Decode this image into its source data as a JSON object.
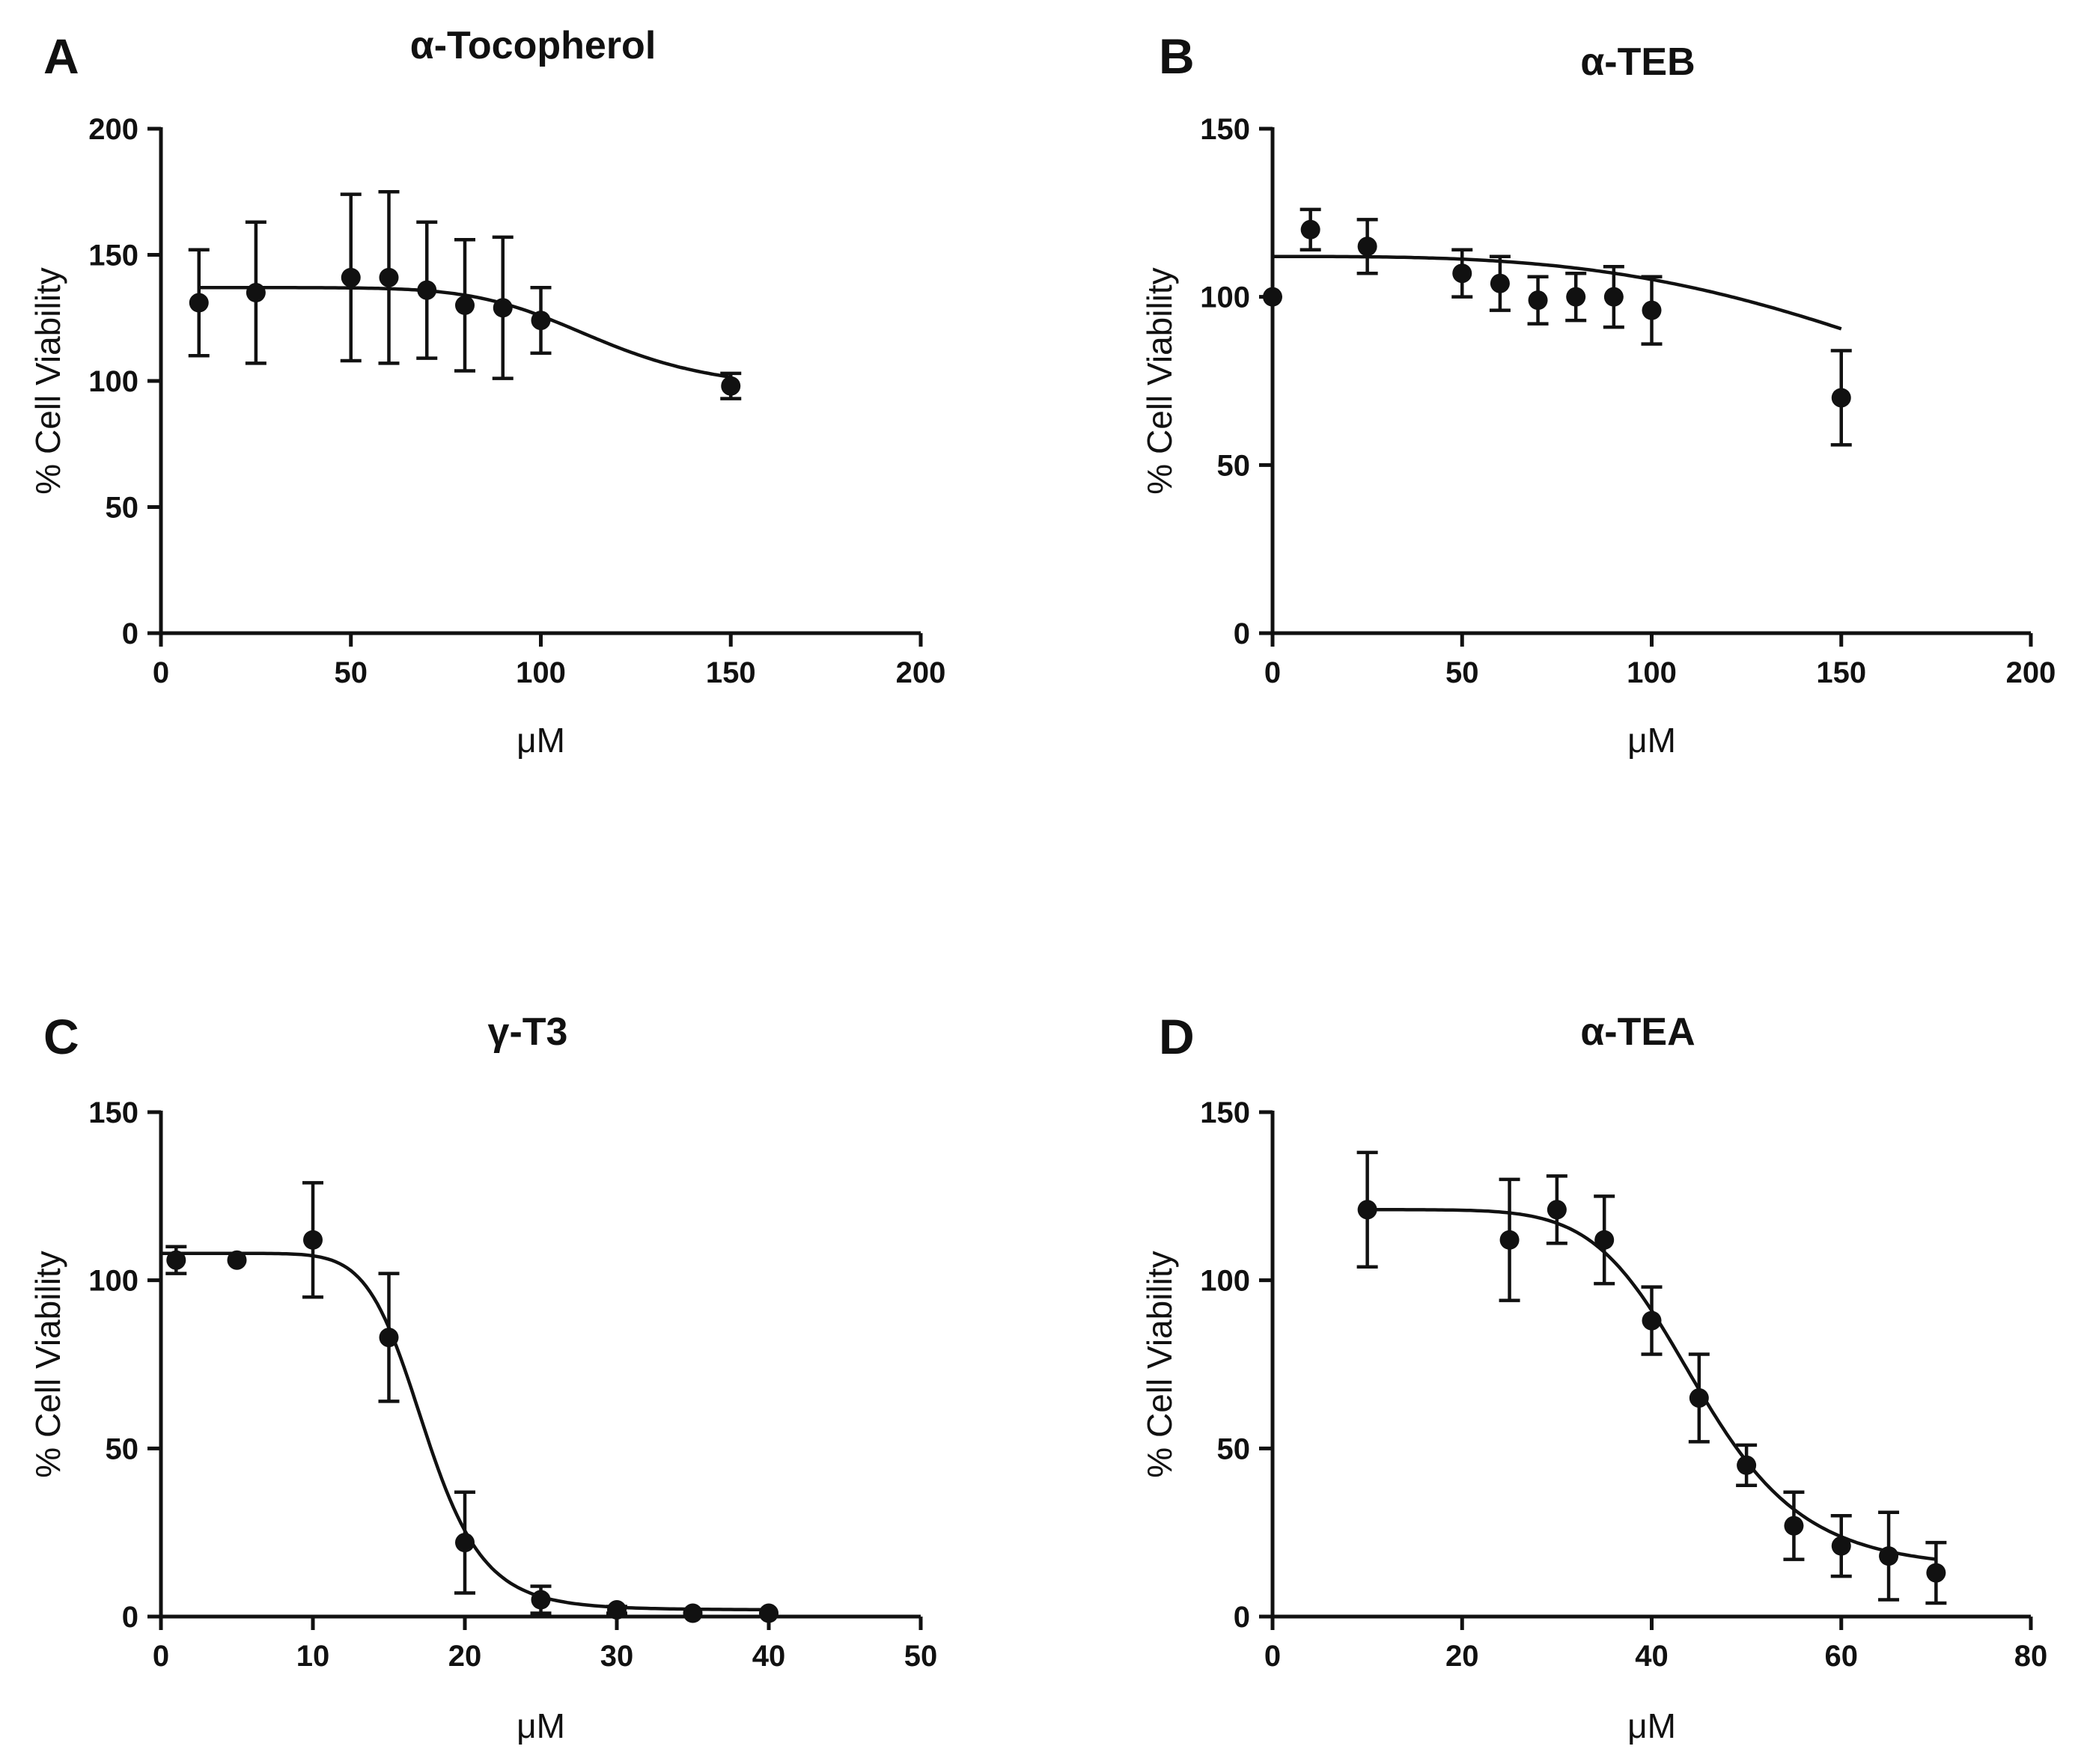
{
  "chart_data": [
    {
      "id": "A",
      "type": "scatter",
      "letter": "A",
      "title": "α-Tocopherol",
      "xlabel": "μM",
      "ylabel": "% Cell Viability",
      "xlim": [
        0,
        200
      ],
      "ylim": [
        0,
        200
      ],
      "xticks": [
        0,
        50,
        100,
        150,
        200
      ],
      "yticks": [
        0,
        50,
        100,
        150,
        200
      ],
      "points": [
        {
          "x": 10,
          "y": 131,
          "err": 21
        },
        {
          "x": 25,
          "y": 135,
          "err": 28
        },
        {
          "x": 50,
          "y": 141,
          "err": 33
        },
        {
          "x": 60,
          "y": 141,
          "err": 34
        },
        {
          "x": 70,
          "y": 136,
          "err": 27
        },
        {
          "x": 80,
          "y": 130,
          "err": 26
        },
        {
          "x": 90,
          "y": 129,
          "err": 28
        },
        {
          "x": 100,
          "y": 124,
          "err": 13
        },
        {
          "x": 150,
          "y": 98,
          "err": 5
        }
      ],
      "fit": {
        "top": 137,
        "bottom": 96,
        "ec50": 115,
        "hill": 7,
        "xmin": 10,
        "xmax": 150
      }
    },
    {
      "id": "B",
      "type": "scatter",
      "letter": "B",
      "title": "α-TEB",
      "xlabel": "μM",
      "ylabel": "% Cell Viability",
      "xlim": [
        0,
        200
      ],
      "ylim": [
        0,
        150
      ],
      "xticks": [
        0,
        50,
        100,
        150,
        200
      ],
      "yticks": [
        0,
        50,
        100,
        150
      ],
      "points": [
        {
          "x": 0,
          "y": 100,
          "err": 0
        },
        {
          "x": 10,
          "y": 120,
          "err": 6
        },
        {
          "x": 25,
          "y": 115,
          "err": 8
        },
        {
          "x": 50,
          "y": 107,
          "err": 7
        },
        {
          "x": 60,
          "y": 104,
          "err": 8
        },
        {
          "x": 70,
          "y": 99,
          "err": 7
        },
        {
          "x": 80,
          "y": 100,
          "err": 7
        },
        {
          "x": 90,
          "y": 100,
          "err": 9
        },
        {
          "x": 100,
          "y": 96,
          "err": 10
        },
        {
          "x": 150,
          "y": 70,
          "err": 14
        }
      ],
      "fit": {
        "top": 112,
        "bottom": 0,
        "ec50": 235,
        "hill": 3.2,
        "xmin": 0,
        "xmax": 150
      }
    },
    {
      "id": "C",
      "type": "scatter",
      "letter": "C",
      "title": "γ-T3",
      "xlabel": "μM",
      "ylabel": "% Cell Viability",
      "xlim": [
        0,
        50
      ],
      "ylim": [
        0,
        150
      ],
      "xticks": [
        0,
        10,
        20,
        30,
        40,
        50
      ],
      "yticks": [
        0,
        50,
        100,
        150
      ],
      "points": [
        {
          "x": 1,
          "y": 106,
          "err": 4
        },
        {
          "x": 5,
          "y": 106,
          "err": 0
        },
        {
          "x": 10,
          "y": 112,
          "err": 17
        },
        {
          "x": 15,
          "y": 83,
          "err": 19
        },
        {
          "x": 20,
          "y": 22,
          "err": 15
        },
        {
          "x": 25,
          "y": 5,
          "err": 4
        },
        {
          "x": 30,
          "y": 2,
          "err": 1
        },
        {
          "x": 35,
          "y": 1,
          "err": 0
        },
        {
          "x": 40,
          "y": 1,
          "err": 0
        }
      ],
      "fit": {
        "top": 108,
        "bottom": 2,
        "ec50": 17.4,
        "hill": 9,
        "xmin": 0,
        "xmax": 40
      }
    },
    {
      "id": "D",
      "type": "scatter",
      "letter": "D",
      "title": "α-TEA",
      "xlabel": "μM",
      "ylabel": "% Cell Viability",
      "xlim": [
        0,
        80
      ],
      "ylim": [
        0,
        150
      ],
      "xticks": [
        0,
        20,
        40,
        60,
        80
      ],
      "yticks": [
        0,
        50,
        100,
        150
      ],
      "points": [
        {
          "x": 10,
          "y": 121,
          "err": 17
        },
        {
          "x": 25,
          "y": 112,
          "err": 18
        },
        {
          "x": 30,
          "y": 121,
          "err": 10
        },
        {
          "x": 35,
          "y": 112,
          "err": 13
        },
        {
          "x": 40,
          "y": 88,
          "err": 10
        },
        {
          "x": 45,
          "y": 65,
          "err": 13
        },
        {
          "x": 50,
          "y": 45,
          "err": 6
        },
        {
          "x": 55,
          "y": 27,
          "err": 10
        },
        {
          "x": 60,
          "y": 21,
          "err": 9
        },
        {
          "x": 65,
          "y": 18,
          "err": 13
        },
        {
          "x": 70,
          "y": 13,
          "err": 9
        }
      ],
      "fit": {
        "top": 121,
        "bottom": 14,
        "ec50": 45,
        "hill": 8,
        "xmin": 10,
        "xmax": 70
      }
    }
  ]
}
